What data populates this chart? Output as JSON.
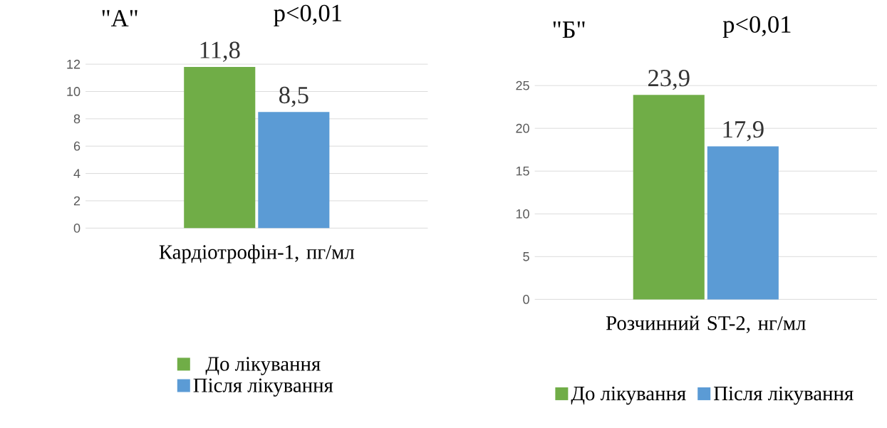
{
  "chart_data": [
    {
      "type": "bar",
      "title": "\"А\"",
      "annotations": [
        "p<0,01"
      ],
      "categories": [
        "Кардіотрофін-1, пг/мл"
      ],
      "series": [
        {
          "name": "До лікування",
          "color": "#70ad47",
          "values": [
            11.8
          ],
          "value_labels": [
            "11,8"
          ]
        },
        {
          "name": "Після лікування",
          "color": "#5b9bd5",
          "values": [
            8.5
          ],
          "value_labels": [
            "8,5"
          ]
        }
      ],
      "ylim": [
        0,
        12
      ],
      "yticks": [
        0,
        2,
        4,
        6,
        8,
        10,
        12
      ],
      "grid": "y",
      "legend": "bottom"
    },
    {
      "type": "bar",
      "title": "\"Б\"",
      "annotations": [
        "p<0,01"
      ],
      "categories": [
        "Розчинний ST-2, нг/мл"
      ],
      "series": [
        {
          "name": "До лікування",
          "color": "#70ad47",
          "values": [
            23.9
          ],
          "value_labels": [
            "23,9"
          ]
        },
        {
          "name": "Після лікування",
          "color": "#5b9bd5",
          "values": [
            17.9
          ],
          "value_labels": [
            "17,9"
          ]
        }
      ],
      "ylim": [
        0,
        25
      ],
      "yticks": [
        0,
        5,
        10,
        15,
        20,
        25
      ],
      "grid": "y",
      "legend": "bottom"
    }
  ]
}
